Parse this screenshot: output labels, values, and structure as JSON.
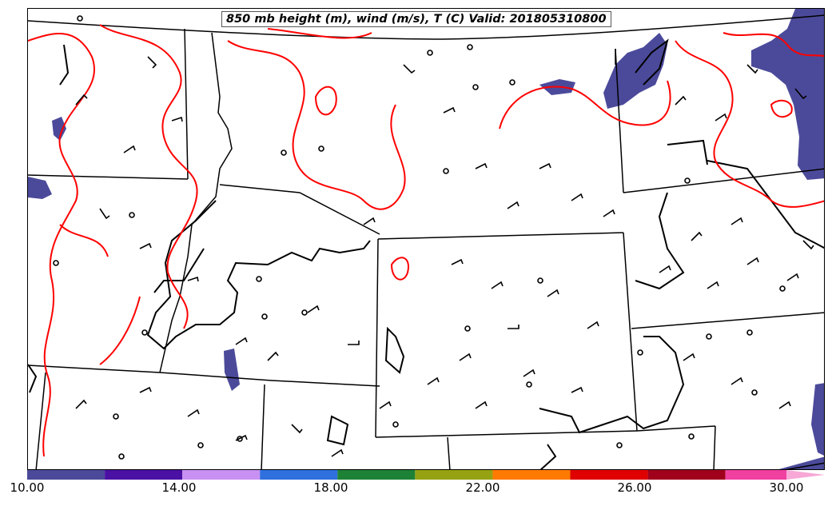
{
  "title": "850 mb height (m), wind (m/s), T (C) Valid: 201805310800",
  "colorbar": {
    "bins": [
      {
        "from": 10,
        "to": 12,
        "color": "#4b4a9a"
      },
      {
        "from": 12,
        "to": 14,
        "color": "#4b11a4"
      },
      {
        "from": 14,
        "to": 16,
        "color": "#c890f2"
      },
      {
        "from": 16,
        "to": 18,
        "color": "#2f6fde"
      },
      {
        "from": 18,
        "to": 20,
        "color": "#1e8236"
      },
      {
        "from": 20,
        "to": 22,
        "color": "#97a212"
      },
      {
        "from": 22,
        "to": 24,
        "color": "#ff7a00"
      },
      {
        "from": 24,
        "to": 26,
        "color": "#e00000"
      },
      {
        "from": 26,
        "to": 28,
        "color": "#a0001c"
      },
      {
        "from": 28,
        "to": 30,
        "color": "#f040a0"
      }
    ],
    "extend_color": "#f7a8d6",
    "tick_labels": [
      "10.00",
      "14.00",
      "18.00",
      "22.00",
      "26.00",
      "30.00"
    ]
  },
  "layers": {
    "temperature_contour_color": "#ff0000",
    "height_contour_color": "#000000",
    "boundary_color": "#000000",
    "wind_barb_color": "#000000"
  }
}
